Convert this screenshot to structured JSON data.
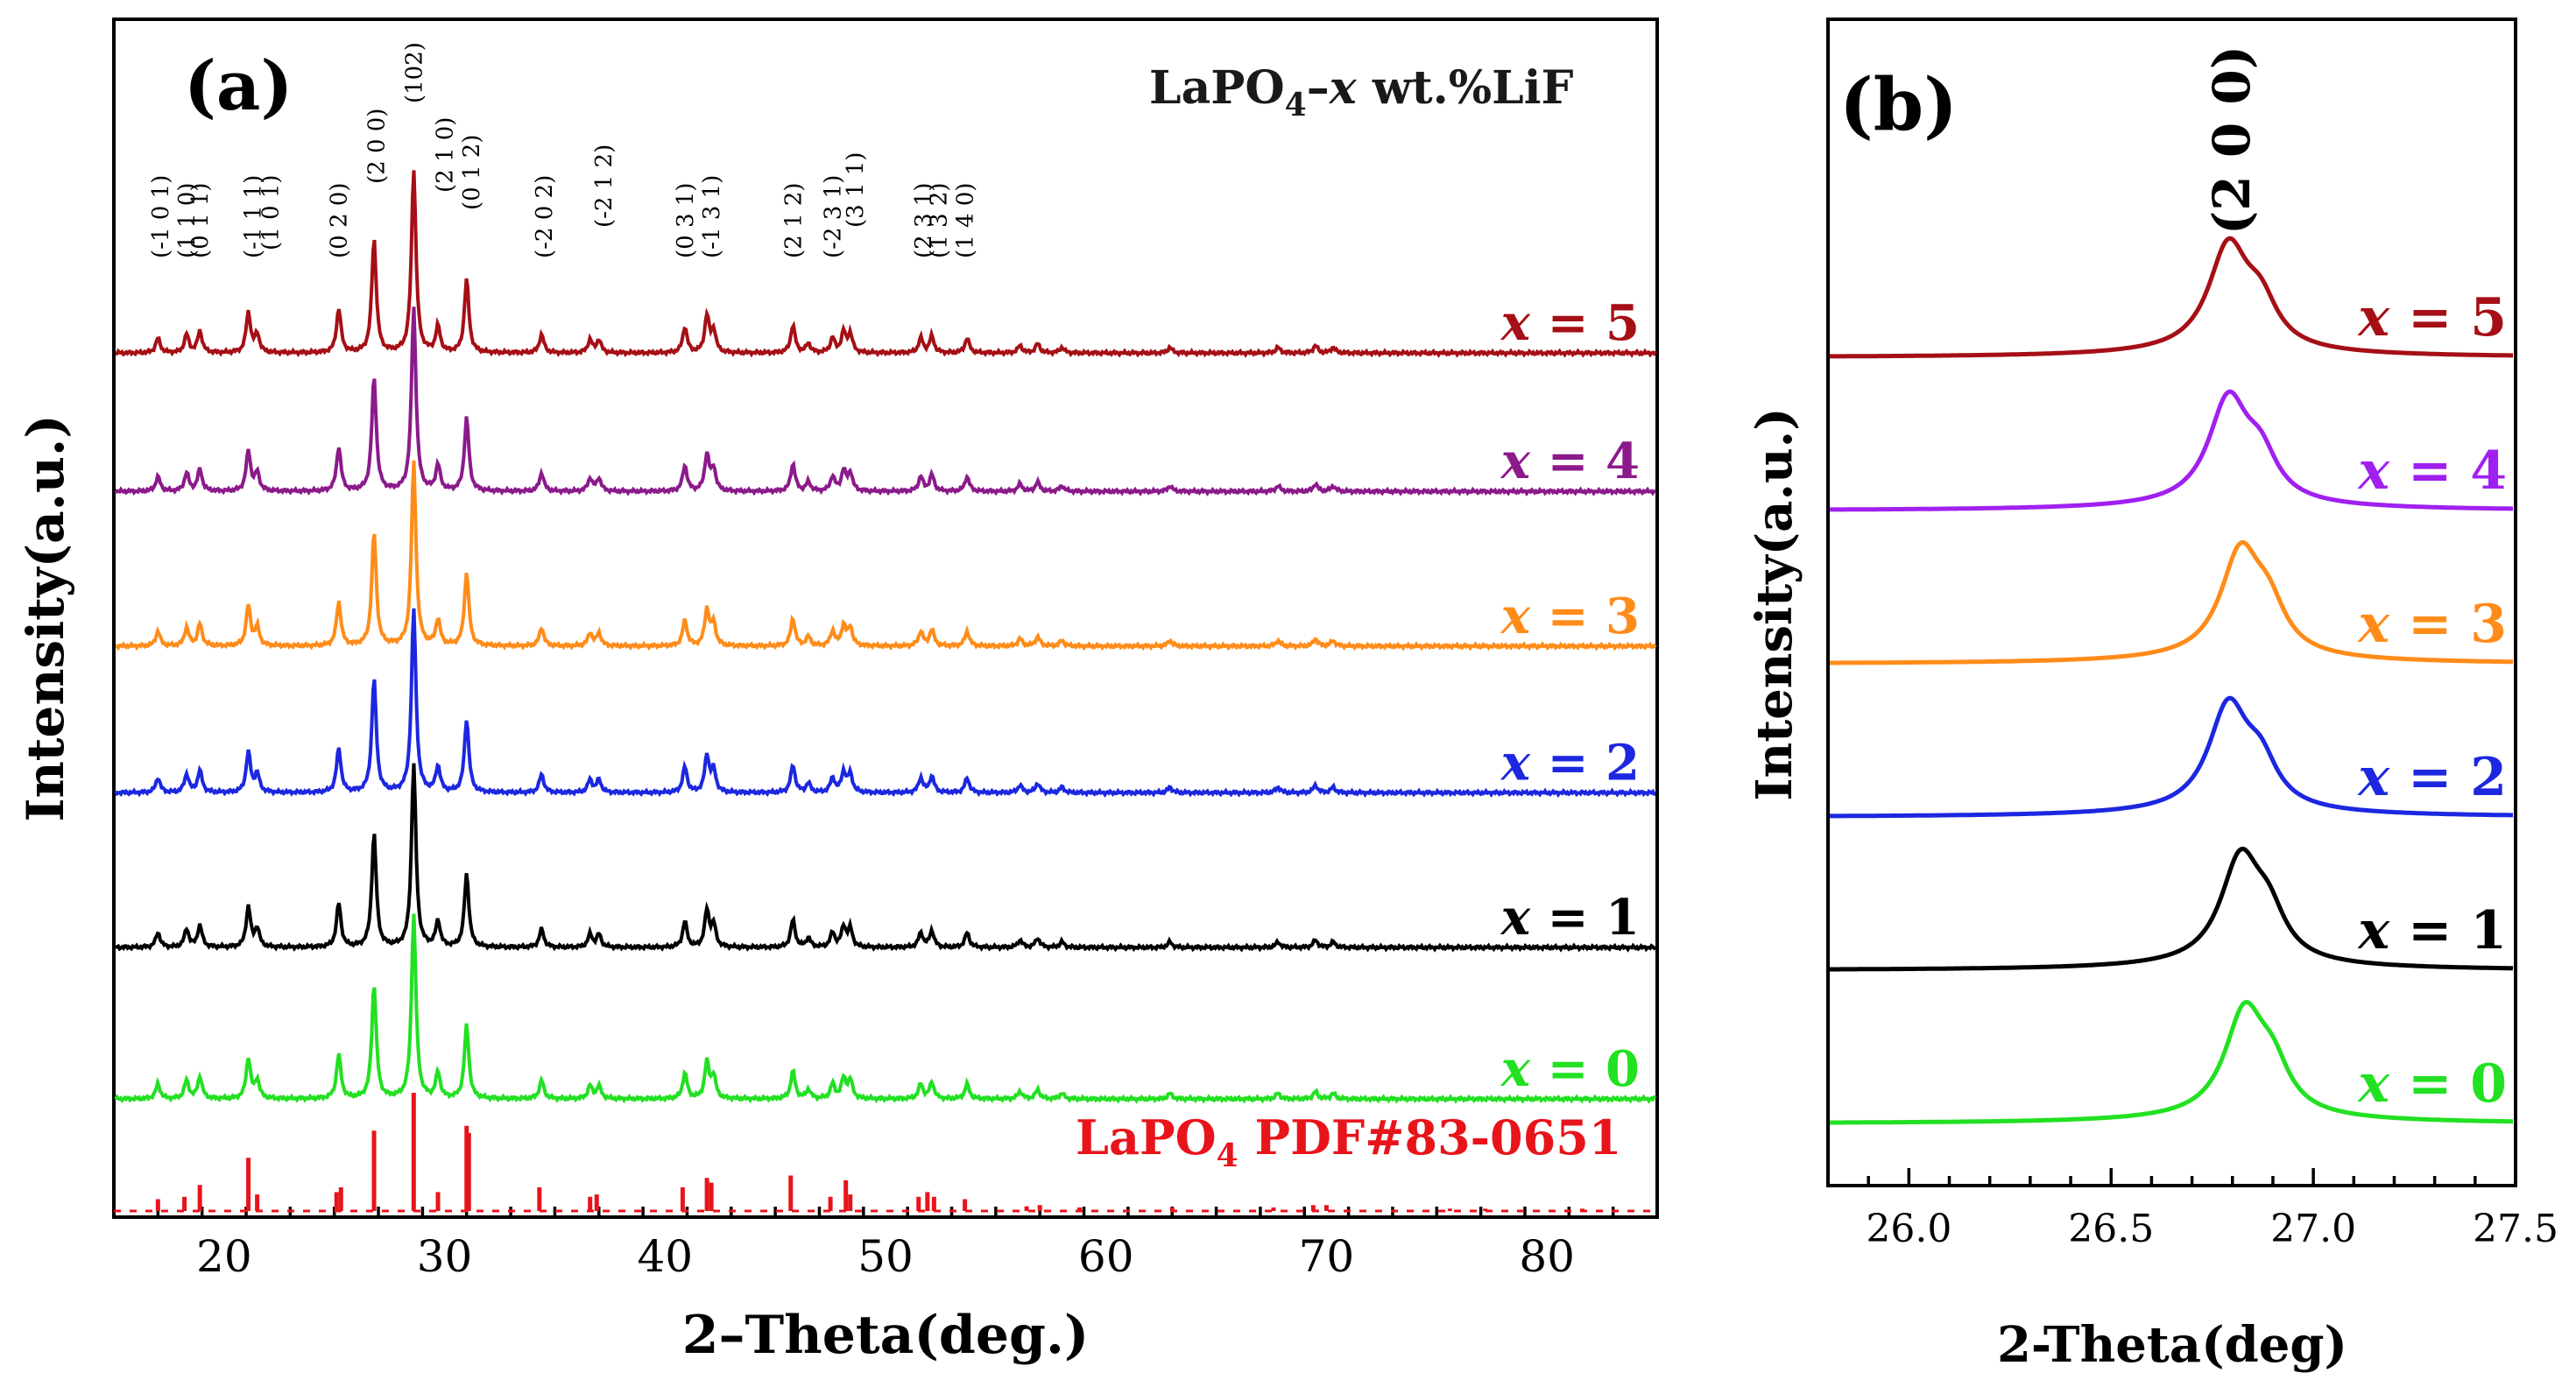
{
  "chart_data": [
    {
      "panel_label": "(a)",
      "type": "line",
      "title": "LaPO4–x wt.%LiF",
      "title_parts": {
        "base": "LaPO",
        "sub": "4",
        "dash": "–",
        "var": "x",
        "rest": " wt.%LiF"
      },
      "xlabel": "2–Theta(deg.)",
      "ylabel": "Intensity(a.u.)",
      "xlim": [
        15,
        85
      ],
      "xticks": [
        20,
        30,
        40,
        50,
        60,
        70,
        80
      ],
      "series": [
        {
          "name": "x = 5",
          "var": "x",
          "eq": " = 5",
          "color": "#a50f15",
          "baseline": 5.0
        },
        {
          "name": "x = 4",
          "var": "x",
          "eq": " = 4",
          "color": "#8b1a8b",
          "baseline": 4.15
        },
        {
          "name": "x = 3",
          "var": "x",
          "eq": " = 3",
          "color": "#ff8c1a",
          "baseline": 3.2
        },
        {
          "name": "x = 2",
          "var": "x",
          "eq": " = 2",
          "color": "#1c27e0",
          "baseline": 2.3
        },
        {
          "name": "x = 1",
          "var": "x",
          "eq": " = 1",
          "color": "#000000",
          "baseline": 1.35
        },
        {
          "name": "x = 0",
          "var": "x",
          "eq": " = 0",
          "color": "#22e022",
          "baseline": 0.42
        }
      ],
      "peaks": [
        {
          "x": 17.0,
          "h": 0.08
        },
        {
          "x": 18.3,
          "h": 0.1
        },
        {
          "x": 18.9,
          "h": 0.12
        },
        {
          "x": 21.1,
          "h": 0.22
        },
        {
          "x": 21.5,
          "h": 0.1
        },
        {
          "x": 25.2,
          "h": 0.24
        },
        {
          "x": 26.8,
          "h": 0.62
        },
        {
          "x": 28.6,
          "h": 1.0
        },
        {
          "x": 29.7,
          "h": 0.14
        },
        {
          "x": 31.0,
          "h": 0.4
        },
        {
          "x": 34.4,
          "h": 0.1
        },
        {
          "x": 36.6,
          "h": 0.07
        },
        {
          "x": 37.0,
          "h": 0.07
        },
        {
          "x": 40.9,
          "h": 0.14
        },
        {
          "x": 41.9,
          "h": 0.2
        },
        {
          "x": 42.2,
          "h": 0.12
        },
        {
          "x": 45.8,
          "h": 0.15
        },
        {
          "x": 46.5,
          "h": 0.05
        },
        {
          "x": 47.6,
          "h": 0.08
        },
        {
          "x": 48.1,
          "h": 0.11
        },
        {
          "x": 48.4,
          "h": 0.1
        },
        {
          "x": 51.6,
          "h": 0.08
        },
        {
          "x": 52.1,
          "h": 0.09
        },
        {
          "x": 53.7,
          "h": 0.08
        },
        {
          "x": 56.1,
          "h": 0.04
        },
        {
          "x": 56.9,
          "h": 0.05
        },
        {
          "x": 58.0,
          "h": 0.03
        },
        {
          "x": 62.9,
          "h": 0.03
        },
        {
          "x": 67.8,
          "h": 0.03
        },
        {
          "x": 69.5,
          "h": 0.04
        },
        {
          "x": 70.3,
          "h": 0.03
        }
      ],
      "reference": {
        "label_base": "LaPO",
        "label_sub": "4",
        "label_rest": " PDF#83-0651",
        "color": "#e8141b",
        "sticks": [
          {
            "x": 17.0,
            "h": 0.1
          },
          {
            "x": 18.2,
            "h": 0.12
          },
          {
            "x": 18.9,
            "h": 0.22
          },
          {
            "x": 21.1,
            "h": 0.45
          },
          {
            "x": 21.5,
            "h": 0.14
          },
          {
            "x": 25.1,
            "h": 0.16
          },
          {
            "x": 25.3,
            "h": 0.2
          },
          {
            "x": 26.8,
            "h": 0.68
          },
          {
            "x": 28.6,
            "h": 1.0
          },
          {
            "x": 29.7,
            "h": 0.16
          },
          {
            "x": 31.0,
            "h": 0.72
          },
          {
            "x": 31.1,
            "h": 0.66
          },
          {
            "x": 34.3,
            "h": 0.2
          },
          {
            "x": 36.6,
            "h": 0.12
          },
          {
            "x": 36.9,
            "h": 0.14
          },
          {
            "x": 40.8,
            "h": 0.2
          },
          {
            "x": 41.9,
            "h": 0.28
          },
          {
            "x": 42.1,
            "h": 0.24
          },
          {
            "x": 45.7,
            "h": 0.3
          },
          {
            "x": 47.5,
            "h": 0.12
          },
          {
            "x": 48.2,
            "h": 0.26
          },
          {
            "x": 48.4,
            "h": 0.14
          },
          {
            "x": 51.5,
            "h": 0.12
          },
          {
            "x": 51.9,
            "h": 0.16
          },
          {
            "x": 52.2,
            "h": 0.12
          },
          {
            "x": 53.6,
            "h": 0.1
          },
          {
            "x": 56.4,
            "h": 0.04
          },
          {
            "x": 57.0,
            "h": 0.05
          },
          {
            "x": 58.8,
            "h": 0.03
          },
          {
            "x": 63.0,
            "h": 0.03
          },
          {
            "x": 67.6,
            "h": 0.03
          },
          {
            "x": 69.4,
            "h": 0.05
          },
          {
            "x": 70.0,
            "h": 0.05
          },
          {
            "x": 75.6,
            "h": 0.02
          },
          {
            "x": 77.2,
            "h": 0.02
          },
          {
            "x": 81.6,
            "h": 0.02
          }
        ]
      },
      "hkl_labels": [
        {
          "x": 17.1,
          "text": "(-1 0 1)",
          "row": 0
        },
        {
          "x": 18.3,
          "text": "(1 1 0)",
          "row": 0
        },
        {
          "x": 18.9,
          "text": "(0 1 1)",
          "row": 0
        },
        {
          "x": 21.3,
          "text": "(-1 1 1)",
          "row": 0
        },
        {
          "x": 22.1,
          "text": "(1 0 1)",
          "row": 1
        },
        {
          "x": 25.2,
          "text": "(0 2 0)",
          "row": 0
        },
        {
          "x": 26.9,
          "text": "(2 0 0)",
          "row": 2
        },
        {
          "x": 28.6,
          "text": "(102)",
          "row": 3
        },
        {
          "x": 30.0,
          "text": "(2 1 0)",
          "row": 4
        },
        {
          "x": 31.2,
          "text": "(0 1 2)",
          "row": 5
        },
        {
          "x": 34.5,
          "text": "(-2 0 2)",
          "row": 0
        },
        {
          "x": 37.2,
          "text": "(-2 1 2)",
          "row": 6
        },
        {
          "x": 40.9,
          "text": "(0 3 1)",
          "row": 0
        },
        {
          "x": 42.1,
          "text": "(-1 3 1)",
          "row": 0
        },
        {
          "x": 45.8,
          "text": "(2 1 2)",
          "row": 0
        },
        {
          "x": 47.6,
          "text": "(-2 3 1)",
          "row": 0
        },
        {
          "x": 48.6,
          "text": "(3 1 1)",
          "row": 6
        },
        {
          "x": 51.7,
          "text": "(2 3 1)",
          "row": 0
        },
        {
          "x": 52.4,
          "text": "(1 3 2)",
          "row": 0
        },
        {
          "x": 53.6,
          "text": "(1 4 0)",
          "row": 0
        }
      ]
    },
    {
      "panel_label": "(b)",
      "type": "line",
      "xlabel": "2-Theta(deg)",
      "ylabel": "Intensity(a.u.)",
      "xlim": [
        25.8,
        27.5
      ],
      "xticks": [
        26.0,
        26.5,
        27.0,
        27.5
      ],
      "xtick_labels": [
        "26.0",
        "26.5",
        "27.0",
        "27.5"
      ],
      "peak_label": "(2 0 0)",
      "series": [
        {
          "name": "x = 5",
          "var": "x",
          "eq": " = 5",
          "color": "#a50f15",
          "center": 26.79,
          "shoulder": 26.87,
          "baseline": 5.0
        },
        {
          "name": "x = 4",
          "var": "x",
          "eq": " = 4",
          "color": "#a020f0",
          "center": 26.79,
          "shoulder": 26.87,
          "baseline": 4.0
        },
        {
          "name": "x = 3",
          "var": "x",
          "eq": " = 3",
          "color": "#ff8c1a",
          "center": 26.82,
          "shoulder": 26.89,
          "baseline": 3.0
        },
        {
          "name": "x = 2",
          "var": "x",
          "eq": " = 2",
          "color": "#1c27e0",
          "center": 26.79,
          "shoulder": 26.87,
          "baseline": 2.0
        },
        {
          "name": "x = 1",
          "var": "x",
          "eq": " = 1",
          "color": "#000000",
          "center": 26.82,
          "shoulder": 26.89,
          "baseline": 1.0
        },
        {
          "name": "x = 0",
          "var": "x",
          "eq": " = 0",
          "color": "#22e022",
          "center": 26.83,
          "shoulder": 26.9,
          "baseline": 0.0
        }
      ]
    }
  ]
}
